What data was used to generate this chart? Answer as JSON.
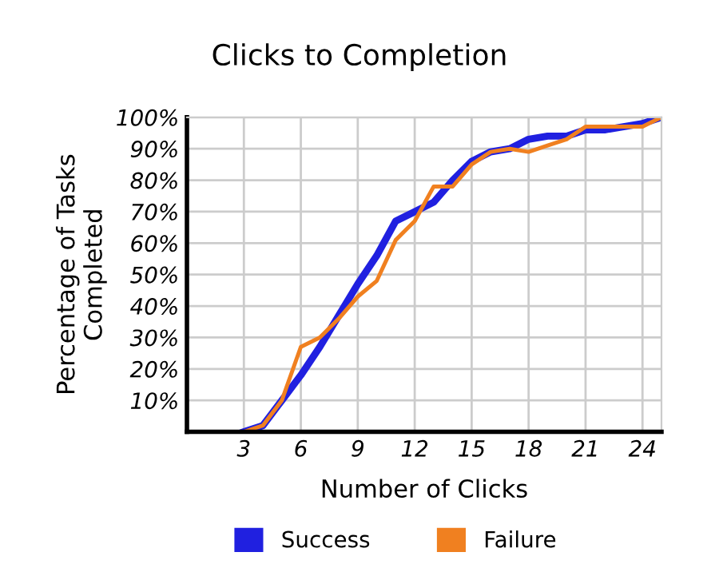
{
  "chart_data": {
    "type": "line",
    "title": "Clicks to Completion",
    "xlabel": "Number of Clicks",
    "ylabel": "Percentage of Tasks\nCompleted",
    "x": [
      3,
      4,
      5,
      6,
      7,
      8,
      9,
      10,
      11,
      12,
      13,
      14,
      15,
      16,
      17,
      18,
      19,
      20,
      21,
      22,
      23,
      24,
      25
    ],
    "series": [
      {
        "name": "Success",
        "color": "#2020e0",
        "values": [
          0,
          2,
          10,
          18,
          27,
          37,
          47,
          56,
          67,
          70,
          73,
          80,
          86,
          89,
          90,
          93,
          94,
          94,
          96,
          96,
          97,
          98,
          100
        ]
      },
      {
        "name": "Failure",
        "color": "#f08020",
        "values": [
          0,
          2,
          10,
          27,
          30,
          36,
          43,
          48,
          61,
          67,
          78,
          78,
          85,
          89,
          90,
          89,
          91,
          93,
          97,
          97,
          97,
          97,
          100
        ]
      }
    ],
    "xlim": [
      0,
      25
    ],
    "xticks": [
      3,
      6,
      9,
      12,
      15,
      18,
      21,
      24
    ],
    "ylim": [
      0,
      100
    ],
    "yticks": [
      {
        "value": 0,
        "label": null
      },
      {
        "value": 10,
        "label": "10%"
      },
      {
        "value": 20,
        "label": "20%"
      },
      {
        "value": 30,
        "label": "30%"
      },
      {
        "value": 40,
        "label": "40%"
      },
      {
        "value": 50,
        "label": "50%"
      },
      {
        "value": 60,
        "label": "60%"
      },
      {
        "value": 70,
        "label": "70%"
      },
      {
        "value": 80,
        "label": "80%"
      },
      {
        "value": 90,
        "label": "90%"
      },
      {
        "value": 100,
        "label": "100%"
      }
    ],
    "grid": true,
    "legend": "bottom",
    "marker": "none",
    "line_style": "solid"
  }
}
